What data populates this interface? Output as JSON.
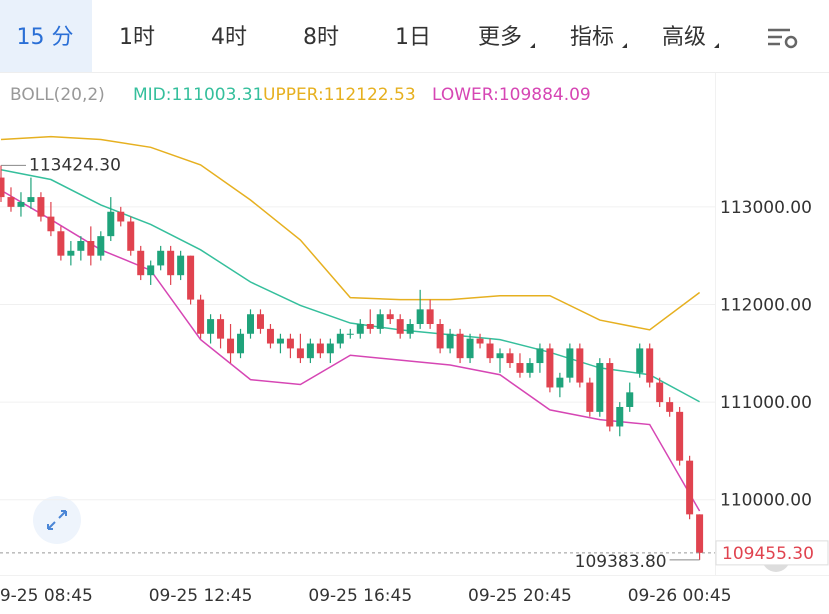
{
  "tabs": [
    "15 分",
    "1时",
    "4时",
    "8时",
    "1日",
    "更多",
    "指标",
    "高级"
  ],
  "chart_data": {
    "type": "candlestick",
    "indicator": "BOLL(20,2)",
    "categories": [
      null,
      null,
      null,
      null,
      "09-25 08:45",
      null,
      null,
      null,
      null,
      null,
      null,
      null,
      null,
      null,
      null,
      null,
      null,
      null,
      null,
      null,
      "09-25 12:45",
      null,
      null,
      null,
      null,
      null,
      null,
      null,
      null,
      null,
      null,
      null,
      null,
      null,
      null,
      null,
      "09-25 16:45",
      null,
      null,
      null,
      null,
      null,
      null,
      null,
      null,
      null,
      null,
      null,
      null,
      null,
      null,
      null,
      "09-25 20:45",
      null,
      null,
      null,
      null,
      null,
      null,
      null,
      null,
      null,
      null,
      null,
      null,
      null,
      null,
      null,
      "09-26 00:45",
      null,
      null
    ],
    "open": [
      113300,
      113100,
      113000,
      113050,
      113100,
      112900,
      112750,
      112500,
      112550,
      112650,
      112500,
      112700,
      112950,
      112850,
      112550,
      112300,
      112400,
      112550,
      112300,
      112500,
      112050,
      111700,
      111850,
      111650,
      111500,
      111700,
      111900,
      111750,
      111600,
      111650,
      111550,
      111450,
      111600,
      111500,
      111600,
      111700,
      111700,
      111800,
      111750,
      111900,
      111850,
      111700,
      111800,
      111950,
      111800,
      111550,
      111700,
      111450,
      111650,
      111600,
      111450,
      111500,
      111400,
      111300,
      111400,
      111550,
      111150,
      111250,
      111550,
      111200,
      110900,
      111400,
      110750,
      110950,
      111300,
      111550,
      111200,
      111000,
      110900,
      110400,
      109850
    ],
    "high": [
      113424.3,
      113200,
      113150,
      113300,
      113150,
      113050,
      112800,
      112650,
      112700,
      112800,
      112750,
      113100,
      113000,
      112900,
      112600,
      112450,
      112600,
      112600,
      112550,
      112500,
      112100,
      111900,
      111900,
      111800,
      111750,
      111950,
      111950,
      111800,
      111700,
      111700,
      111700,
      111650,
      111650,
      111650,
      111750,
      111750,
      111850,
      111950,
      111950,
      111950,
      111900,
      111850,
      112150,
      112050,
      111850,
      111750,
      111750,
      111700,
      111700,
      111650,
      111550,
      111550,
      111500,
      111450,
      111600,
      111600,
      111300,
      111600,
      111600,
      111250,
      111450,
      111450,
      111000,
      111200,
      111600,
      111600,
      111250,
      111050,
      110950,
      110450,
      109850
    ],
    "low": [
      113050,
      112950,
      112900,
      112980,
      112850,
      112700,
      112450,
      112400,
      112450,
      112400,
      112450,
      112650,
      112800,
      112500,
      112250,
      112200,
      112350,
      112200,
      112250,
      112000,
      111650,
      111600,
      111550,
      111400,
      111450,
      111650,
      111700,
      111550,
      111500,
      111450,
      111400,
      111400,
      111450,
      111400,
      111550,
      111650,
      111650,
      111700,
      111700,
      111800,
      111650,
      111650,
      111750,
      111750,
      111500,
      111500,
      111400,
      111400,
      111550,
      111400,
      111300,
      111350,
      111250,
      111250,
      111300,
      111100,
      111050,
      111200,
      111150,
      110850,
      110850,
      110700,
      110650,
      110900,
      111250,
      111150,
      110950,
      110850,
      110350,
      109800,
      109383.8
    ],
    "close": [
      113100,
      113000,
      113050,
      113100,
      112900,
      112750,
      112500,
      112550,
      112650,
      112500,
      112700,
      112950,
      112850,
      112550,
      112300,
      112400,
      112550,
      112300,
      112500,
      112050,
      111700,
      111850,
      111650,
      111500,
      111700,
      111900,
      111750,
      111600,
      111650,
      111550,
      111450,
      111600,
      111500,
      111600,
      111700,
      111700,
      111800,
      111750,
      111900,
      111850,
      111700,
      111800,
      111950,
      111800,
      111550,
      111700,
      111450,
      111650,
      111600,
      111450,
      111500,
      111400,
      111300,
      111400,
      111550,
      111150,
      111250,
      111550,
      111200,
      110900,
      111400,
      110750,
      110950,
      111100,
      111550,
      111200,
      111000,
      110900,
      110400,
      109850,
      109455.3
    ],
    "up_color": "#1fa37b",
    "down_color": "#e0434f",
    "series": [
      {
        "name": "MID",
        "legend_text": "MID:111003.31",
        "color": "#35bf9c",
        "x": [
          0,
          5,
          10,
          15,
          20,
          25,
          30,
          35,
          40,
          45,
          50,
          55,
          60,
          65,
          70
        ],
        "values": [
          113380,
          113280,
          113020,
          112820,
          112560,
          112230,
          111990,
          111810,
          111740,
          111690,
          111640,
          111510,
          111350,
          111280,
          111003.31
        ]
      },
      {
        "name": "UPPER",
        "legend_text": "UPPER:112122.53",
        "color": "#e6b020",
        "x": [
          0,
          5,
          10,
          15,
          20,
          25,
          30,
          35,
          40,
          45,
          50,
          55,
          60,
          65,
          70
        ],
        "values": [
          113690,
          113720,
          113690,
          113610,
          113430,
          113070,
          112660,
          112070,
          112050,
          112050,
          112090,
          112090,
          111840,
          111740,
          112122.53
        ]
      },
      {
        "name": "LOWER",
        "legend_text": "LOWER:109884.09",
        "color": "#d646b4",
        "x": [
          0,
          5,
          10,
          15,
          20,
          25,
          30,
          35,
          40,
          45,
          50,
          55,
          60,
          65,
          70
        ],
        "values": [
          113170,
          112870,
          112560,
          112350,
          111640,
          111230,
          111180,
          111480,
          111430,
          111380,
          111280,
          110920,
          110820,
          110770,
          109884.09
        ]
      }
    ],
    "ylim": [
      109280,
      114320
    ],
    "yticks": [
      {
        "value": 113000,
        "label": "113000.00"
      },
      {
        "value": 112000,
        "label": "112000.00"
      },
      {
        "value": 111000,
        "label": "111000.00"
      },
      {
        "value": 110000,
        "label": "110000.00"
      }
    ],
    "grid": true,
    "high_marker": {
      "value": 113424.3,
      "label": "113424.30"
    },
    "low_marker": {
      "value": 109383.8,
      "label": "109383.80"
    },
    "last_price": {
      "value": 109455.3,
      "label": "109455.30"
    }
  }
}
